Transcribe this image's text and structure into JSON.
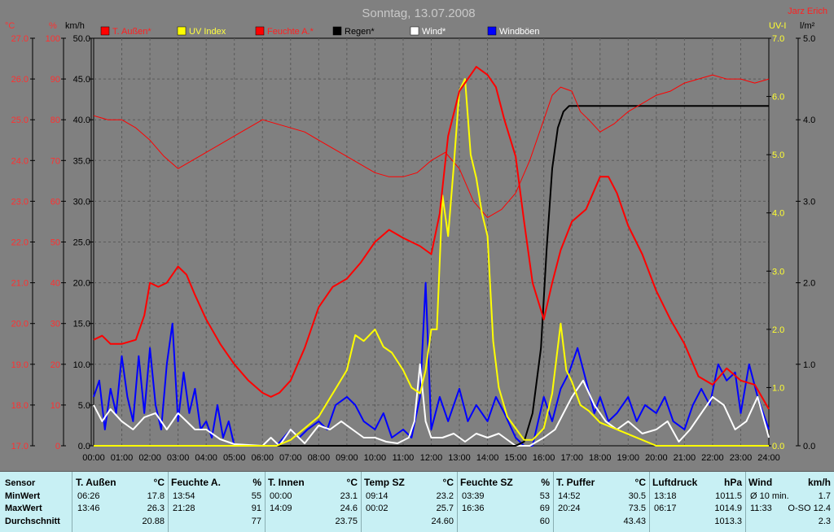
{
  "window": {
    "title": "Sonntag, 13.07.2008",
    "author": "Jarz Erich"
  },
  "colors": {
    "plot_bg": "#808080",
    "temp": "#ff0000",
    "uv": "#ffff00",
    "humidity": "#ff0000",
    "rain": "#000000",
    "wind": "#ffffff",
    "gusts": "#0000ff",
    "left_axis_text": "#ff3030",
    "uv_axis_text": "#ffff30",
    "table_bg": "#c8f0f4"
  },
  "axes_units": {
    "temp": "°C",
    "hum": "%",
    "wind": "km/h",
    "uv": "UV-I",
    "rain": "l/m²"
  },
  "chart_data": {
    "type": "line",
    "title": "Sonntag, 13.07.2008",
    "x_ticks": [
      "00:00",
      "01:00",
      "02:00",
      "03:00",
      "04:00",
      "05:00",
      "06:00",
      "07:00",
      "08:00",
      "09:00",
      "10:00",
      "11:00",
      "12:00",
      "13:00",
      "14:00",
      "15:00",
      "16:00",
      "17:00",
      "18:00",
      "19:00",
      "20:00",
      "21:00",
      "22:00",
      "23:00",
      "24:00"
    ],
    "xlim": [
      0,
      24
    ],
    "axes": {
      "temp": {
        "ticks": [
          "17.0",
          "18.0",
          "19.0",
          "20.0",
          "21.0",
          "22.0",
          "23.0",
          "24.0",
          "25.0",
          "26.0",
          "27.0"
        ],
        "range": [
          17,
          27
        ]
      },
      "hum": {
        "ticks": [
          "0",
          "10",
          "20",
          "30",
          "40",
          "50",
          "60",
          "70",
          "80",
          "90",
          "100"
        ],
        "range": [
          0,
          100
        ]
      },
      "wind": {
        "ticks": [
          "0.0",
          "5.0",
          "10.0",
          "15.0",
          "20.0",
          "25.0",
          "30.0",
          "35.0",
          "40.0",
          "45.0",
          "50.0"
        ],
        "range": [
          0,
          50
        ]
      },
      "uv": {
        "ticks": [
          "0.0",
          "1.0",
          "2.0",
          "3.0",
          "4.0",
          "5.0",
          "6.0",
          "7.0"
        ],
        "range": [
          0,
          7
        ]
      },
      "rain": {
        "ticks": [
          "0.0",
          "1.0",
          "2.0",
          "3.0",
          "4.0",
          "5.0"
        ],
        "range": [
          0,
          5
        ]
      }
    },
    "legend": [
      {
        "name": "T. Außen*",
        "color": "#ff0000",
        "text_color": "#ff2020"
      },
      {
        "name": "UV Index",
        "color": "#ffff00",
        "text_color": "#ffff40"
      },
      {
        "name": "Feuchte A.*",
        "color": "#ff0000",
        "text_color": "#ff2020"
      },
      {
        "name": "Regen*",
        "color": "#000000",
        "text_color": "#000000"
      },
      {
        "name": "Wind*",
        "color": "#ffffff",
        "text_color": "#ffffff"
      },
      {
        "name": "Windböen",
        "color": "#0000ff",
        "text_color": "#ffffff"
      }
    ],
    "series": [
      {
        "name": "T. Außen*",
        "axis": "temp",
        "color": "#ff0000",
        "width": 2,
        "x": [
          0,
          0.3,
          0.6,
          1,
          1.5,
          1.8,
          2,
          2.3,
          2.6,
          3,
          3.3,
          3.6,
          4,
          4.5,
          5,
          5.5,
          6,
          6.3,
          6.6,
          7,
          7.5,
          8,
          8.5,
          9,
          9.5,
          10,
          10.5,
          11,
          11.3,
          11.6,
          12,
          12.3,
          12.6,
          13,
          13.3,
          13.6,
          14,
          14.3,
          14.6,
          15,
          15.3,
          15.6,
          16,
          16.3,
          16.6,
          17,
          17.5,
          18,
          18.3,
          18.6,
          19,
          19.5,
          20,
          20.5,
          21,
          21.5,
          22,
          22.5,
          23,
          23.5,
          24
        ],
        "y": [
          19.6,
          19.7,
          19.5,
          19.5,
          19.6,
          20.2,
          21.0,
          20.9,
          21.0,
          21.4,
          21.2,
          20.7,
          20.1,
          19.5,
          19.0,
          18.6,
          18.3,
          18.2,
          18.3,
          18.6,
          19.4,
          20.4,
          20.9,
          21.1,
          21.5,
          22.0,
          22.3,
          22.1,
          22.0,
          21.9,
          21.7,
          22.7,
          24.6,
          25.7,
          26.0,
          26.3,
          26.1,
          25.8,
          25.0,
          24.1,
          22.5,
          21.0,
          20.1,
          21.0,
          21.8,
          22.5,
          22.8,
          23.6,
          23.6,
          23.2,
          22.4,
          21.7,
          20.8,
          20.1,
          19.5,
          18.7,
          18.5,
          18.9,
          18.6,
          18.5,
          17.9
        ]
      },
      {
        "name": "Feuchte A.*",
        "axis": "hum",
        "color": "#ff0000",
        "width": 1,
        "x": [
          0,
          0.5,
          1,
          1.5,
          2,
          2.5,
          3,
          3.5,
          4,
          4.5,
          5,
          5.5,
          6,
          6.5,
          7,
          7.5,
          8,
          8.5,
          9,
          9.5,
          10,
          10.5,
          11,
          11.5,
          12,
          12.5,
          13,
          13.5,
          14,
          14.5,
          15,
          15.5,
          16,
          16.3,
          16.6,
          17,
          17.3,
          17.6,
          18,
          18.5,
          19,
          19.5,
          20,
          20.5,
          21,
          21.5,
          22,
          22.5,
          23,
          23.5,
          24
        ],
        "y": [
          81,
          80,
          80,
          78,
          75,
          71,
          68,
          70,
          72,
          74,
          76,
          78,
          80,
          79,
          78,
          77,
          75,
          73,
          71,
          69,
          67,
          66,
          66,
          67,
          70,
          72,
          68,
          60,
          56,
          58,
          62,
          70,
          80,
          86,
          88,
          87,
          82,
          80,
          77,
          79,
          82,
          84,
          86,
          87,
          89,
          90,
          91,
          90,
          90,
          89,
          90
        ]
      },
      {
        "name": "Regen*",
        "axis": "rain",
        "color": "#000000",
        "width": 2,
        "x": [
          0,
          15,
          15.3,
          15.6,
          15.9,
          16.1,
          16.3,
          16.5,
          16.7,
          16.9,
          24
        ],
        "y": [
          0,
          0,
          0.05,
          0.4,
          1.2,
          2.4,
          3.4,
          3.9,
          4.1,
          4.17,
          4.17
        ]
      },
      {
        "name": "UV Index",
        "axis": "uv",
        "color": "#ffff00",
        "width": 2,
        "x": [
          0,
          6.5,
          7,
          7.5,
          8,
          8.5,
          9,
          9.3,
          9.6,
          10,
          10.3,
          10.6,
          11,
          11.3,
          11.6,
          11.8,
          12,
          12.2,
          12.4,
          12.6,
          12.8,
          13,
          13.2,
          13.4,
          13.6,
          13.8,
          14,
          14.2,
          14.4,
          14.7,
          15,
          15.3,
          15.6,
          16,
          16.3,
          16.6,
          16.8,
          17,
          17.3,
          17.6,
          18,
          18.5,
          19,
          19.5,
          20,
          24
        ],
        "y": [
          0,
          0,
          0.1,
          0.3,
          0.5,
          0.9,
          1.3,
          1.9,
          1.8,
          2.0,
          1.7,
          1.6,
          1.3,
          1.0,
          0.9,
          1.3,
          2.0,
          2.0,
          4.3,
          3.6,
          4.8,
          6.1,
          6.3,
          5.0,
          4.6,
          4.0,
          3.6,
          1.8,
          1.0,
          0.5,
          0.3,
          0.1,
          0.1,
          0.3,
          0.9,
          2.1,
          1.3,
          1.1,
          0.7,
          0.6,
          0.4,
          0.3,
          0.2,
          0.1,
          0,
          0
        ]
      },
      {
        "name": "Wind*",
        "axis": "wind",
        "color": "#ffffff",
        "width": 2,
        "x": [
          0,
          0.3,
          0.6,
          1,
          1.4,
          1.8,
          2.2,
          2.6,
          3,
          3.3,
          3.6,
          4,
          4.5,
          5,
          5.5,
          6,
          6.3,
          6.6,
          7,
          7.5,
          8,
          8.4,
          8.8,
          9.2,
          9.6,
          10,
          10.4,
          10.8,
          11.2,
          11.4,
          11.6,
          11.8,
          12,
          12.4,
          12.8,
          13.2,
          13.6,
          14,
          14.4,
          14.8,
          15,
          15.5,
          16,
          16.4,
          16.7,
          17,
          17.4,
          17.8,
          18.2,
          18.6,
          19,
          19.5,
          20,
          20.4,
          20.8,
          21.2,
          21.6,
          22,
          22.4,
          22.8,
          23.2,
          23.6,
          24
        ],
        "y": [
          5,
          3,
          4.5,
          3,
          2,
          3.5,
          4,
          2,
          4,
          3,
          2,
          2,
          0.8,
          0.2,
          0.1,
          0,
          1,
          0,
          2,
          0.3,
          2.5,
          2,
          3,
          2,
          1,
          1,
          0.5,
          0.3,
          1,
          3,
          10,
          3,
          1,
          1,
          1.5,
          0.5,
          1.5,
          1,
          1.5,
          0.5,
          0,
          0,
          1,
          2,
          4,
          6,
          8,
          5,
          3,
          2,
          3,
          1.5,
          2,
          3,
          0.5,
          2,
          4,
          6,
          5,
          2,
          3,
          6,
          1
        ]
      },
      {
        "name": "Windböen",
        "axis": "wind",
        "color": "#0000ff",
        "width": 2,
        "x": [
          0,
          0.2,
          0.4,
          0.6,
          0.8,
          1,
          1.2,
          1.4,
          1.6,
          1.8,
          2,
          2.2,
          2.4,
          2.6,
          2.8,
          3,
          3.2,
          3.4,
          3.6,
          3.8,
          4,
          4.2,
          4.4,
          4.6,
          4.8,
          5,
          5.5,
          6,
          6.5,
          7,
          7.3,
          7.6,
          8,
          8.3,
          8.6,
          9,
          9.3,
          9.6,
          10,
          10.3,
          10.6,
          11,
          11.3,
          11.6,
          11.8,
          12,
          12.3,
          12.6,
          13,
          13.3,
          13.6,
          14,
          14.3,
          14.6,
          15,
          15.3,
          15.6,
          15.8,
          16,
          16.3,
          16.6,
          16.9,
          17.2,
          17.5,
          17.8,
          18,
          18.3,
          18.6,
          19,
          19.3,
          19.6,
          20,
          20.3,
          20.6,
          21,
          21.3,
          21.6,
          21.9,
          22.2,
          22.5,
          22.8,
          23,
          23.3,
          23.6,
          24
        ],
        "y": [
          6,
          8,
          2,
          7,
          4,
          11,
          6,
          3,
          11,
          4,
          12,
          5,
          2,
          10,
          15,
          3,
          9,
          4,
          7,
          2,
          3,
          1,
          5,
          1,
          3,
          0,
          0,
          0,
          0,
          2,
          1,
          2,
          3,
          2,
          5,
          6,
          5,
          3,
          2,
          4,
          1,
          2,
          1,
          6,
          20,
          2,
          6,
          3,
          7,
          3,
          5,
          3,
          6,
          4,
          1,
          0,
          0,
          3,
          6,
          3,
          7,
          9,
          12,
          8,
          4,
          6,
          3,
          4,
          6,
          3,
          5,
          4,
          6,
          3,
          2,
          5,
          7,
          5,
          10,
          8,
          9,
          4,
          10,
          6,
          2
        ]
      }
    ]
  },
  "table": {
    "labels": {
      "sensor": "Sensor",
      "min": "MinWert",
      "max": "MaxWert",
      "avg": "Durchschnitt"
    },
    "columns": [
      {
        "name": "T. Außen",
        "unit": "°C",
        "min_t": "06:26",
        "min_v": "17.8",
        "max_t": "13:46",
        "max_v": "26.3",
        "avg": "20.88"
      },
      {
        "name": "Feuchte A.",
        "unit": "%",
        "min_t": "13:54",
        "min_v": "55",
        "max_t": "21:28",
        "max_v": "91",
        "avg": "77"
      },
      {
        "name": "T. Innen",
        "unit": "°C",
        "min_t": "00:00",
        "min_v": "23.1",
        "max_t": "14:09",
        "max_v": "24.6",
        "avg": "23.75"
      },
      {
        "name": "Temp SZ",
        "unit": "°C",
        "min_t": "09:14",
        "min_v": "23.2",
        "max_t": "00:02",
        "max_v": "25.7",
        "avg": "24.60"
      },
      {
        "name": "Feuchte SZ",
        "unit": "%",
        "min_t": "03:39",
        "min_v": "53",
        "max_t": "16:36",
        "max_v": "69",
        "avg": "60"
      },
      {
        "name": "T. Puffer",
        "unit": "°C",
        "min_t": "14:52",
        "min_v": "30.5",
        "max_t": "20:24",
        "max_v": "73.5",
        "avg": "43.43"
      },
      {
        "name": "Luftdruck",
        "unit": "hPa",
        "min_t": "13:18",
        "min_v": "1011.5",
        "max_t": "06:17",
        "max_v": "1014.9",
        "avg": "1013.3"
      },
      {
        "name": "Wind",
        "unit": "km/h",
        "min_t": "Ø 10 min.",
        "min_v": "1.7",
        "max_t": "11:33",
        "max_v": "O-SO 12.4",
        "avg": "2.3"
      }
    ]
  }
}
